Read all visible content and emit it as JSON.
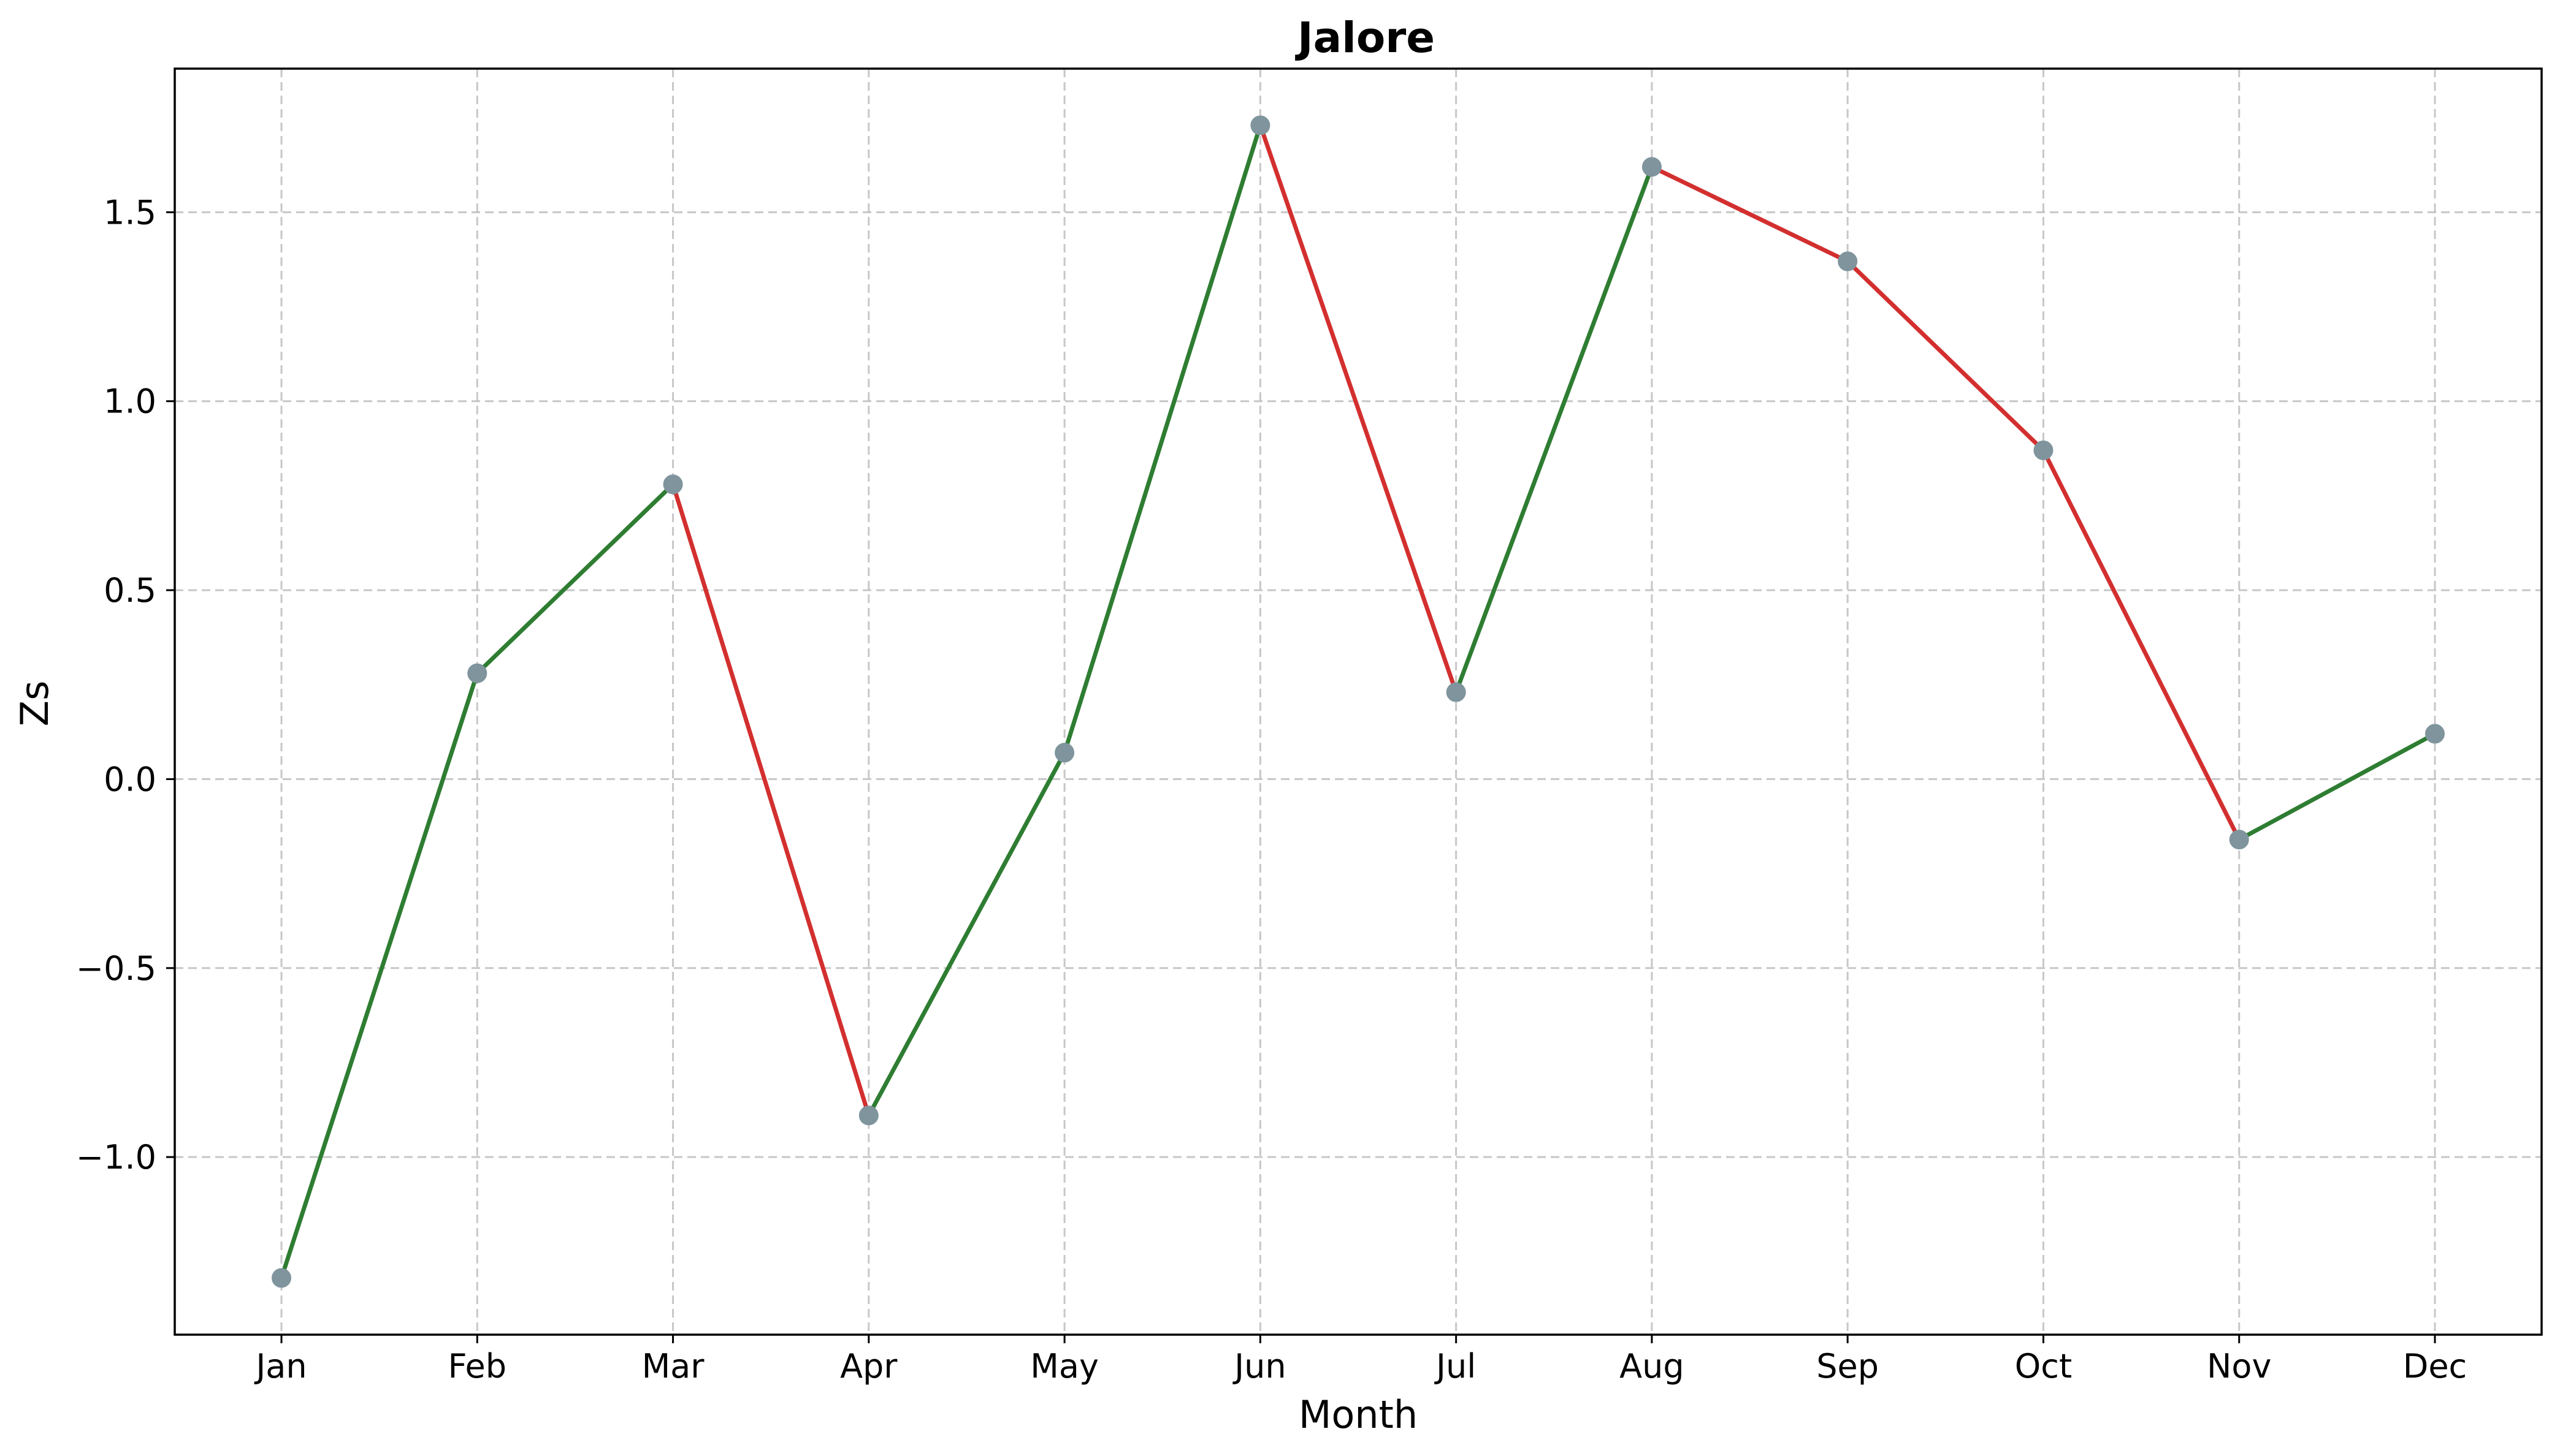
{
  "chart_data": {
    "type": "line",
    "title": "Jalore",
    "xlabel": "Month",
    "ylabel": "Zs",
    "categories": [
      "Jan",
      "Feb",
      "Mar",
      "Apr",
      "May",
      "Jun",
      "Jul",
      "Aug",
      "Sep",
      "Oct",
      "Nov",
      "Dec"
    ],
    "values": [
      -1.32,
      0.28,
      0.78,
      -0.89,
      0.07,
      1.73,
      0.23,
      1.62,
      1.37,
      0.87,
      -0.16,
      0.12
    ],
    "ylim": [
      -1.47,
      1.88
    ],
    "yticks": [
      -1.0,
      -0.5,
      0.0,
      0.5,
      1.0,
      1.5
    ],
    "ytick_labels": [
      "−1.0",
      "−0.5",
      "0.0",
      "0.5",
      "1.0",
      "1.5"
    ],
    "grid": true,
    "colors": {
      "increase": "#2e7d32",
      "decrease": "#d32f2f",
      "marker": "#7f949c"
    }
  }
}
